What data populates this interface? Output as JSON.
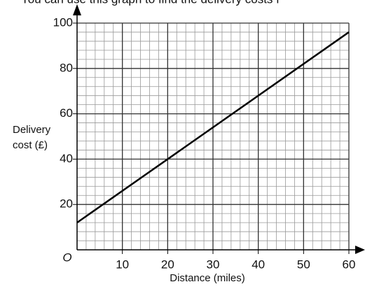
{
  "chart_data": {
    "type": "line",
    "title": "You can use this graph to find the delivery costs f",
    "xlabel": "Distance (miles)",
    "ylabel": [
      "Delivery",
      "cost (£)"
    ],
    "origin_label": "O",
    "x": [
      0,
      60
    ],
    "series": [
      {
        "color": "#000000",
        "values": [
          12,
          96
        ]
      }
    ],
    "xlim": [
      0,
      60
    ],
    "ylim": [
      0,
      100
    ],
    "xticks": [
      10,
      20,
      30,
      40,
      50,
      60
    ],
    "yticks": [
      20,
      40,
      60,
      80,
      100
    ],
    "minor_grid": {
      "x": 2,
      "y": 4
    },
    "grid": true
  }
}
